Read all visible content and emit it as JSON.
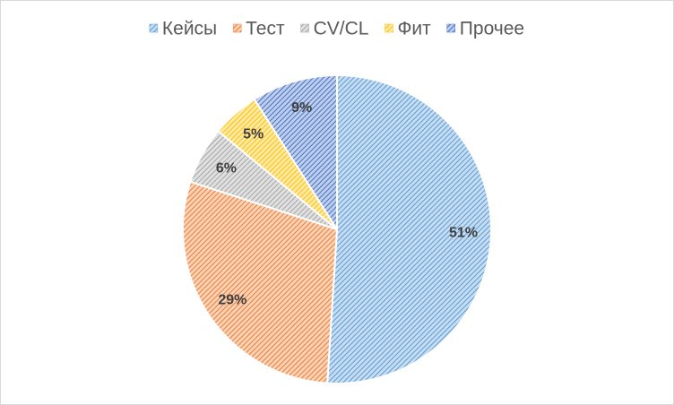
{
  "chart_data": {
    "type": "pie",
    "categories": [
      "Кейсы",
      "Тест",
      "CV/CL",
      "Фит",
      "Прочее"
    ],
    "values": [
      51,
      29,
      6,
      5,
      9
    ],
    "value_labels": [
      "51%",
      "29%",
      "6%",
      "5%",
      "9%"
    ],
    "colors": [
      "#5b9bd5",
      "#ed7d31",
      "#a5a5a5",
      "#ffc000",
      "#4472c4"
    ],
    "legend": "top"
  }
}
